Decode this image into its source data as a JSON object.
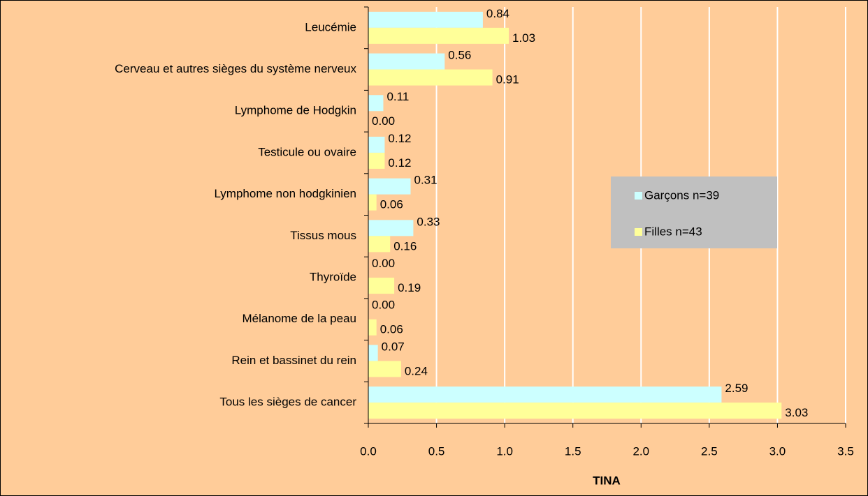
{
  "chart_data": {
    "type": "barh",
    "categories": [
      "Leucémie",
      "Cerveau et autres sièges du système nerveux",
      "Lymphome de Hodgkin",
      "Testicule ou ovaire",
      "Lymphome non hodgkinien",
      "Tissus mous",
      "Thyroïde",
      "Mélanome de la peau",
      "Rein et bassinet du rein",
      "Tous les sièges de cancer"
    ],
    "series": [
      {
        "name": "Garçons n=39",
        "color": "#ccffff",
        "values": [
          0.84,
          0.56,
          0.11,
          0.12,
          0.31,
          0.33,
          0.0,
          0.0,
          0.07,
          2.59
        ],
        "value_labels": [
          "0.84",
          "0.56",
          "0.11",
          "0.12",
          "0.31",
          "0.33",
          "0.00",
          "0.00",
          "0.07",
          "2.59"
        ]
      },
      {
        "name": "Filles n=43",
        "color": "#ffff99",
        "values": [
          1.03,
          0.91,
          0.0,
          0.12,
          0.06,
          0.16,
          0.19,
          0.06,
          0.24,
          3.03
        ],
        "value_labels": [
          "1.03",
          "0.91",
          "0.00",
          "0.12",
          "0.06",
          "0.16",
          "0.19",
          "0.06",
          "0.24",
          "3.03"
        ]
      }
    ],
    "xlabel": "TINA",
    "xlim": [
      0,
      3.5
    ],
    "xticks": [
      {
        "value": 0,
        "label": "0.0"
      },
      0.5,
      {
        "value": 1,
        "label": "1.0"
      },
      1.5,
      {
        "value": 2,
        "label": "2.0"
      },
      2.5,
      {
        "value": 3,
        "label": "3.0"
      },
      3.5
    ],
    "grid": true,
    "legend": "right"
  }
}
